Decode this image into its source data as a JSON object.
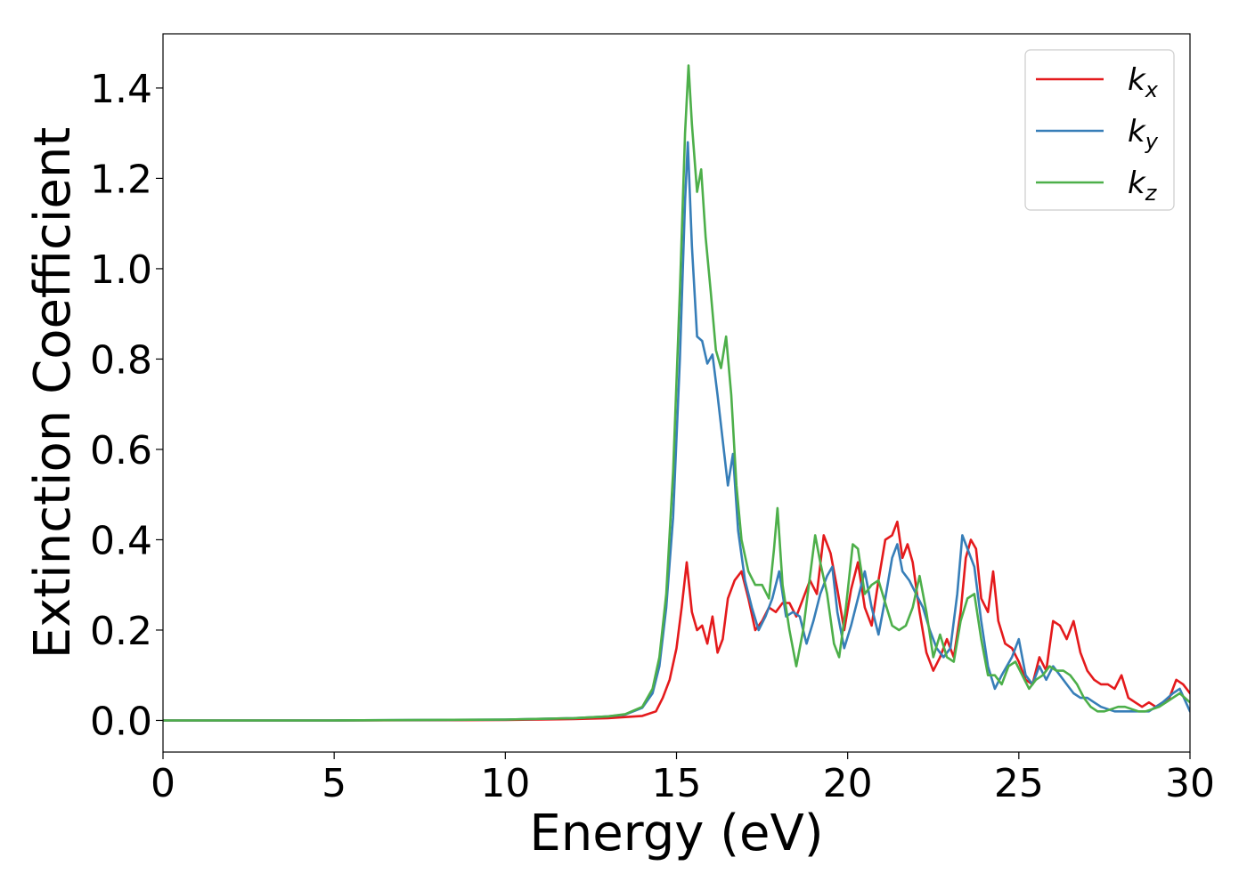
{
  "chart_data": {
    "type": "line",
    "title": "",
    "xlabel": "Energy (eV)",
    "ylabel": "Extinction Coefficient",
    "xlim": [
      0,
      30
    ],
    "ylim": [
      -0.07,
      1.52
    ],
    "x_ticks": [
      0,
      5,
      10,
      15,
      20,
      25,
      30
    ],
    "y_ticks": [
      0.0,
      0.2,
      0.4,
      0.6,
      0.8,
      1.0,
      1.2,
      1.4
    ],
    "x_tick_labels": [
      "0",
      "5",
      "10",
      "15",
      "20",
      "25",
      "30"
    ],
    "y_tick_labels": [
      "0.0",
      "0.2",
      "0.4",
      "0.6",
      "0.8",
      "1.0",
      "1.2",
      "1.4"
    ],
    "grid": false,
    "legend_position": "top-right",
    "series": [
      {
        "name": "k_x",
        "label_main": "k",
        "label_sub": "x",
        "color": "#e41a1c",
        "points": [
          [
            0,
            0.0
          ],
          [
            5,
            0.0
          ],
          [
            10,
            0.001
          ],
          [
            12,
            0.003
          ],
          [
            13,
            0.005
          ],
          [
            14,
            0.01
          ],
          [
            14.4,
            0.02
          ],
          [
            14.6,
            0.05
          ],
          [
            14.8,
            0.09
          ],
          [
            15.0,
            0.16
          ],
          [
            15.15,
            0.25
          ],
          [
            15.3,
            0.35
          ],
          [
            15.45,
            0.24
          ],
          [
            15.6,
            0.2
          ],
          [
            15.75,
            0.21
          ],
          [
            15.9,
            0.17
          ],
          [
            16.05,
            0.23
          ],
          [
            16.2,
            0.15
          ],
          [
            16.35,
            0.18
          ],
          [
            16.5,
            0.27
          ],
          [
            16.7,
            0.31
          ],
          [
            16.9,
            0.33
          ],
          [
            17.1,
            0.27
          ],
          [
            17.3,
            0.2
          ],
          [
            17.5,
            0.22
          ],
          [
            17.7,
            0.25
          ],
          [
            17.9,
            0.24
          ],
          [
            18.1,
            0.26
          ],
          [
            18.3,
            0.26
          ],
          [
            18.5,
            0.23
          ],
          [
            18.7,
            0.27
          ],
          [
            18.9,
            0.31
          ],
          [
            19.1,
            0.28
          ],
          [
            19.3,
            0.41
          ],
          [
            19.5,
            0.37
          ],
          [
            19.7,
            0.29
          ],
          [
            19.9,
            0.2
          ],
          [
            20.1,
            0.29
          ],
          [
            20.3,
            0.35
          ],
          [
            20.5,
            0.25
          ],
          [
            20.7,
            0.21
          ],
          [
            20.9,
            0.31
          ],
          [
            21.1,
            0.4
          ],
          [
            21.3,
            0.41
          ],
          [
            21.45,
            0.44
          ],
          [
            21.6,
            0.36
          ],
          [
            21.75,
            0.39
          ],
          [
            21.9,
            0.35
          ],
          [
            22.1,
            0.24
          ],
          [
            22.3,
            0.15
          ],
          [
            22.5,
            0.11
          ],
          [
            22.7,
            0.14
          ],
          [
            22.9,
            0.18
          ],
          [
            23.1,
            0.14
          ],
          [
            23.3,
            0.24
          ],
          [
            23.45,
            0.36
          ],
          [
            23.6,
            0.4
          ],
          [
            23.75,
            0.38
          ],
          [
            23.9,
            0.27
          ],
          [
            24.1,
            0.24
          ],
          [
            24.25,
            0.33
          ],
          [
            24.4,
            0.22
          ],
          [
            24.6,
            0.17
          ],
          [
            24.8,
            0.16
          ],
          [
            25.0,
            0.13
          ],
          [
            25.2,
            0.09
          ],
          [
            25.4,
            0.08
          ],
          [
            25.6,
            0.14
          ],
          [
            25.8,
            0.11
          ],
          [
            26.0,
            0.22
          ],
          [
            26.2,
            0.21
          ],
          [
            26.4,
            0.18
          ],
          [
            26.6,
            0.22
          ],
          [
            26.8,
            0.15
          ],
          [
            27.0,
            0.11
          ],
          [
            27.2,
            0.09
          ],
          [
            27.4,
            0.08
          ],
          [
            27.6,
            0.08
          ],
          [
            27.8,
            0.07
          ],
          [
            28.0,
            0.1
          ],
          [
            28.2,
            0.05
          ],
          [
            28.4,
            0.04
          ],
          [
            28.6,
            0.03
          ],
          [
            28.8,
            0.04
          ],
          [
            29.0,
            0.03
          ],
          [
            29.2,
            0.04
          ],
          [
            29.4,
            0.05
          ],
          [
            29.6,
            0.09
          ],
          [
            29.8,
            0.08
          ],
          [
            30.0,
            0.06
          ]
        ]
      },
      {
        "name": "k_y",
        "label_main": "k",
        "label_sub": "y",
        "color": "#377eb8",
        "points": [
          [
            0,
            0.0
          ],
          [
            5,
            0.0
          ],
          [
            10,
            0.002
          ],
          [
            12,
            0.005
          ],
          [
            13,
            0.009
          ],
          [
            13.5,
            0.013
          ],
          [
            14.0,
            0.028
          ],
          [
            14.3,
            0.06
          ],
          [
            14.5,
            0.12
          ],
          [
            14.7,
            0.25
          ],
          [
            14.9,
            0.45
          ],
          [
            15.1,
            0.8
          ],
          [
            15.25,
            1.15
          ],
          [
            15.33,
            1.28
          ],
          [
            15.45,
            1.05
          ],
          [
            15.6,
            0.85
          ],
          [
            15.75,
            0.84
          ],
          [
            15.9,
            0.79
          ],
          [
            16.05,
            0.81
          ],
          [
            16.2,
            0.72
          ],
          [
            16.35,
            0.62
          ],
          [
            16.5,
            0.52
          ],
          [
            16.65,
            0.59
          ],
          [
            16.8,
            0.42
          ],
          [
            17.0,
            0.31
          ],
          [
            17.2,
            0.25
          ],
          [
            17.4,
            0.2
          ],
          [
            17.6,
            0.23
          ],
          [
            17.8,
            0.27
          ],
          [
            18.0,
            0.33
          ],
          [
            18.2,
            0.23
          ],
          [
            18.4,
            0.24
          ],
          [
            18.6,
            0.23
          ],
          [
            18.8,
            0.17
          ],
          [
            19.0,
            0.22
          ],
          [
            19.2,
            0.28
          ],
          [
            19.4,
            0.32
          ],
          [
            19.55,
            0.34
          ],
          [
            19.7,
            0.24
          ],
          [
            19.9,
            0.16
          ],
          [
            20.1,
            0.21
          ],
          [
            20.3,
            0.27
          ],
          [
            20.5,
            0.33
          ],
          [
            20.7,
            0.25
          ],
          [
            20.9,
            0.19
          ],
          [
            21.1,
            0.27
          ],
          [
            21.3,
            0.36
          ],
          [
            21.45,
            0.39
          ],
          [
            21.6,
            0.33
          ],
          [
            21.8,
            0.31
          ],
          [
            22.0,
            0.28
          ],
          [
            22.2,
            0.25
          ],
          [
            22.4,
            0.2
          ],
          [
            22.6,
            0.16
          ],
          [
            22.8,
            0.14
          ],
          [
            23.0,
            0.16
          ],
          [
            23.2,
            0.28
          ],
          [
            23.35,
            0.41
          ],
          [
            23.5,
            0.38
          ],
          [
            23.7,
            0.34
          ],
          [
            23.9,
            0.22
          ],
          [
            24.1,
            0.12
          ],
          [
            24.3,
            0.07
          ],
          [
            24.5,
            0.1
          ],
          [
            24.8,
            0.14
          ],
          [
            25.0,
            0.18
          ],
          [
            25.2,
            0.1
          ],
          [
            25.4,
            0.08
          ],
          [
            25.6,
            0.12
          ],
          [
            25.8,
            0.09
          ],
          [
            26.0,
            0.12
          ],
          [
            26.2,
            0.1
          ],
          [
            26.4,
            0.08
          ],
          [
            26.6,
            0.06
          ],
          [
            26.8,
            0.05
          ],
          [
            27.0,
            0.05
          ],
          [
            27.2,
            0.04
          ],
          [
            27.4,
            0.03
          ],
          [
            27.6,
            0.025
          ],
          [
            27.8,
            0.02
          ],
          [
            28.0,
            0.02
          ],
          [
            28.2,
            0.02
          ],
          [
            28.4,
            0.02
          ],
          [
            28.6,
            0.02
          ],
          [
            28.8,
            0.02
          ],
          [
            29.0,
            0.03
          ],
          [
            29.2,
            0.04
          ],
          [
            29.5,
            0.06
          ],
          [
            29.7,
            0.07
          ],
          [
            30.0,
            0.02
          ]
        ]
      },
      {
        "name": "k_z",
        "label_main": "k",
        "label_sub": "z",
        "color": "#4daf4a",
        "points": [
          [
            0,
            0.0
          ],
          [
            5,
            0.0
          ],
          [
            10,
            0.002
          ],
          [
            12,
            0.005
          ],
          [
            13,
            0.009
          ],
          [
            13.5,
            0.014
          ],
          [
            14.0,
            0.03
          ],
          [
            14.3,
            0.07
          ],
          [
            14.5,
            0.14
          ],
          [
            14.7,
            0.28
          ],
          [
            14.9,
            0.55
          ],
          [
            15.1,
            0.95
          ],
          [
            15.25,
            1.3
          ],
          [
            15.35,
            1.45
          ],
          [
            15.45,
            1.32
          ],
          [
            15.6,
            1.17
          ],
          [
            15.72,
            1.22
          ],
          [
            15.85,
            1.07
          ],
          [
            16.0,
            0.95
          ],
          [
            16.15,
            0.82
          ],
          [
            16.3,
            0.78
          ],
          [
            16.45,
            0.85
          ],
          [
            16.6,
            0.72
          ],
          [
            16.75,
            0.52
          ],
          [
            16.9,
            0.4
          ],
          [
            17.1,
            0.33
          ],
          [
            17.3,
            0.3
          ],
          [
            17.5,
            0.3
          ],
          [
            17.7,
            0.27
          ],
          [
            17.85,
            0.38
          ],
          [
            17.95,
            0.47
          ],
          [
            18.1,
            0.3
          ],
          [
            18.3,
            0.2
          ],
          [
            18.5,
            0.12
          ],
          [
            18.7,
            0.2
          ],
          [
            18.9,
            0.32
          ],
          [
            19.05,
            0.41
          ],
          [
            19.2,
            0.35
          ],
          [
            19.4,
            0.28
          ],
          [
            19.6,
            0.17
          ],
          [
            19.75,
            0.14
          ],
          [
            19.95,
            0.25
          ],
          [
            20.15,
            0.39
          ],
          [
            20.3,
            0.38
          ],
          [
            20.5,
            0.28
          ],
          [
            20.7,
            0.3
          ],
          [
            20.9,
            0.31
          ],
          [
            21.1,
            0.26
          ],
          [
            21.3,
            0.21
          ],
          [
            21.5,
            0.2
          ],
          [
            21.7,
            0.21
          ],
          [
            21.9,
            0.25
          ],
          [
            22.1,
            0.32
          ],
          [
            22.3,
            0.24
          ],
          [
            22.5,
            0.14
          ],
          [
            22.7,
            0.19
          ],
          [
            22.9,
            0.14
          ],
          [
            23.1,
            0.13
          ],
          [
            23.3,
            0.22
          ],
          [
            23.5,
            0.27
          ],
          [
            23.7,
            0.28
          ],
          [
            23.9,
            0.18
          ],
          [
            24.1,
            0.1
          ],
          [
            24.3,
            0.1
          ],
          [
            24.5,
            0.08
          ],
          [
            24.7,
            0.12
          ],
          [
            24.9,
            0.13
          ],
          [
            25.1,
            0.1
          ],
          [
            25.3,
            0.07
          ],
          [
            25.5,
            0.09
          ],
          [
            25.7,
            0.1
          ],
          [
            25.9,
            0.12
          ],
          [
            26.1,
            0.11
          ],
          [
            26.3,
            0.11
          ],
          [
            26.5,
            0.1
          ],
          [
            26.7,
            0.08
          ],
          [
            26.9,
            0.05
          ],
          [
            27.1,
            0.03
          ],
          [
            27.3,
            0.02
          ],
          [
            27.5,
            0.02
          ],
          [
            27.7,
            0.025
          ],
          [
            27.9,
            0.03
          ],
          [
            28.1,
            0.03
          ],
          [
            28.3,
            0.025
          ],
          [
            28.5,
            0.02
          ],
          [
            28.7,
            0.02
          ],
          [
            28.9,
            0.025
          ],
          [
            29.1,
            0.03
          ],
          [
            29.3,
            0.04
          ],
          [
            29.5,
            0.05
          ],
          [
            29.7,
            0.06
          ],
          [
            30.0,
            0.04
          ]
        ]
      }
    ]
  }
}
